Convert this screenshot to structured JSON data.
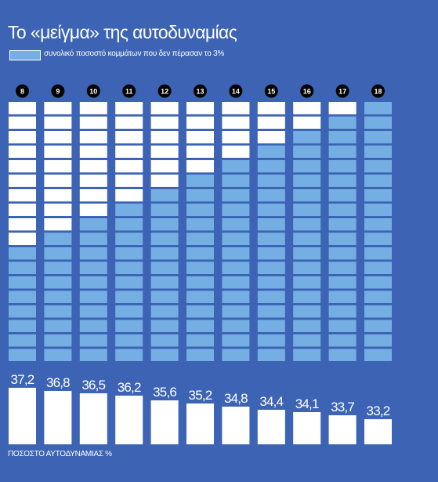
{
  "title": "Το «μείγμα» της αυτοδυναμίας",
  "legend": {
    "label": "συνολικό ποσοστό κομμάτων που δεν πέρασαν το 3%",
    "swatch_color": "#74aee3"
  },
  "footer_label": "ΠΟΣΟΣΤΟ ΑΥΤΟΔΥΝΑΜΙΑΣ %",
  "chart_data": {
    "type": "bar",
    "categories": [
      "8",
      "9",
      "10",
      "11",
      "12",
      "13",
      "14",
      "15",
      "16",
      "17",
      "18"
    ],
    "series": [
      {
        "values": [
          37.2,
          36.8,
          36.5,
          36.2,
          35.6,
          35.2,
          34.8,
          34.4,
          34.1,
          33.7,
          33.2
        ]
      }
    ],
    "value_labels": [
      "37,2",
      "36,8",
      "36,5",
      "36,2",
      "35,6",
      "35,2",
      "34,8",
      "34,4",
      "34,1",
      "33,7",
      "33,2"
    ],
    "unit_grid": {
      "cells_per_column": 18,
      "filled_counts": [
        8,
        9,
        10,
        11,
        12,
        13,
        14,
        15,
        16,
        17,
        18
      ]
    },
    "colors": {
      "background": "#3d64b4",
      "filled_cell": "#74aee3",
      "empty_cell": "#ffffff",
      "bar": "#ffffff",
      "category_badge": "#000000"
    },
    "grid": false,
    "legend_position": "top-left"
  }
}
